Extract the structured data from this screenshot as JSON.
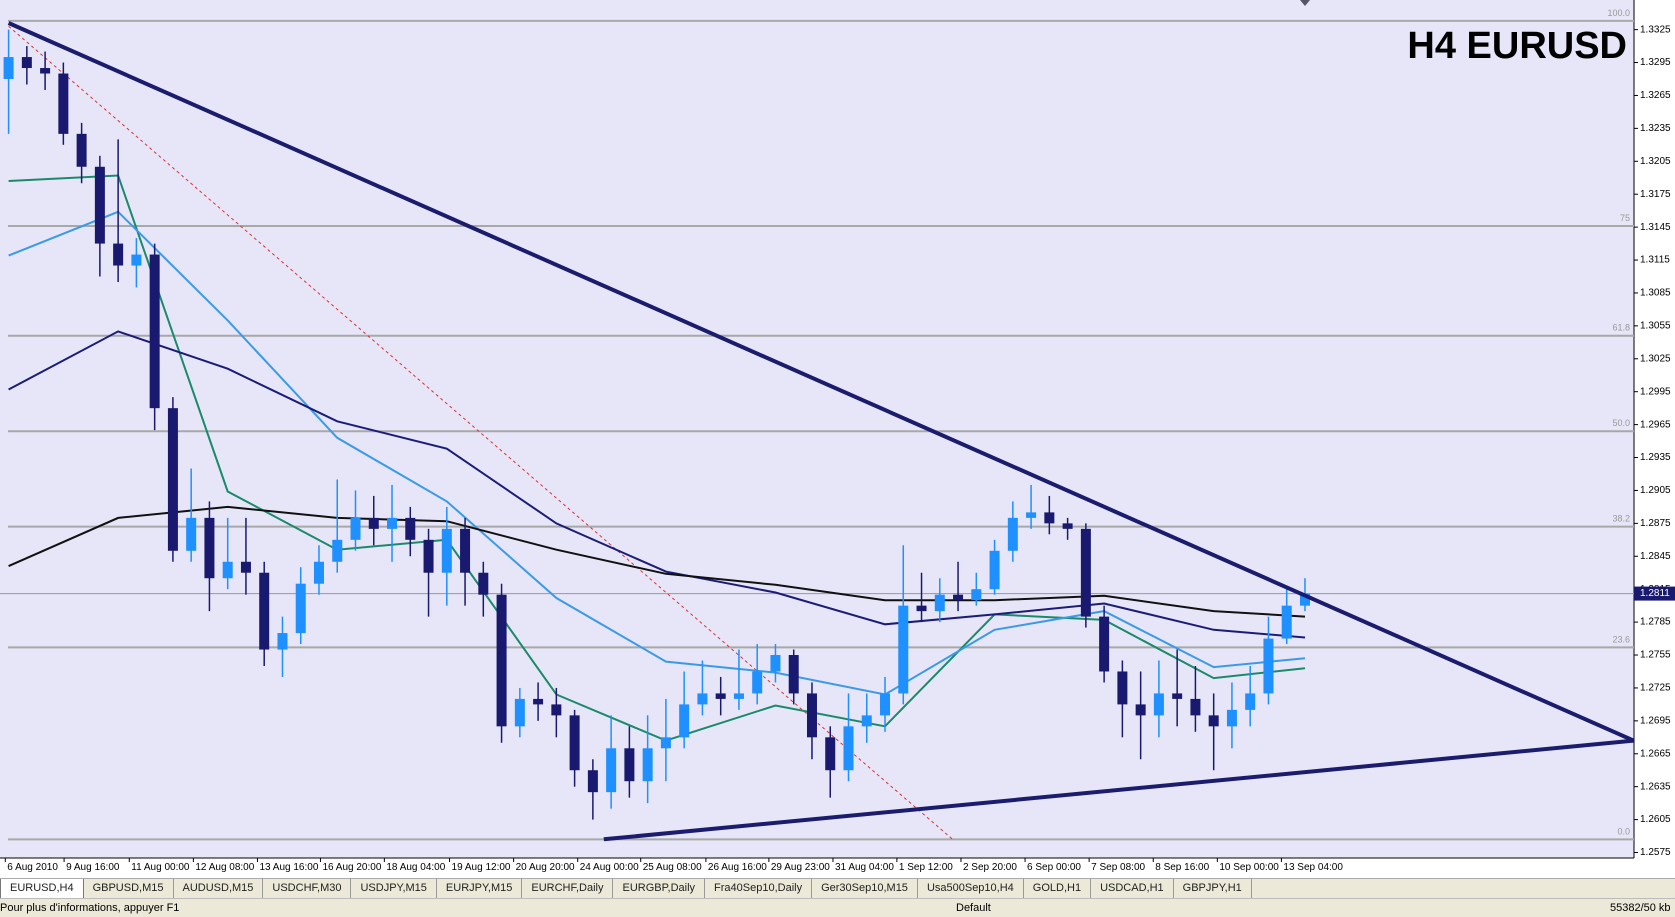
{
  "chart_data": {
    "type": "candlestick",
    "title": "H4 EURUSD",
    "up_color": "#1e90ff",
    "down_color": "#191970",
    "ylim": [
      1.257,
      1.3352
    ],
    "xlim": [
      -0.47,
      89.02
    ],
    "yticks": [
      1.2575,
      1.2605,
      1.2635,
      1.2665,
      1.2695,
      1.2725,
      1.2755,
      1.2785,
      1.2815,
      1.2845,
      1.2875,
      1.2905,
      1.2935,
      1.2965,
      1.2995,
      1.3025,
      1.3055,
      1.3085,
      1.3115,
      1.3145,
      1.3175,
      1.3205,
      1.3235,
      1.3265,
      1.3295,
      1.3325
    ],
    "xticks": [
      {
        "value": -0.18,
        "label": "6 Aug 2010"
      },
      {
        "value": 3.04,
        "label": "9 Aug 16:00"
      },
      {
        "value": 6.61,
        "label": "11 Aug 00:00"
      },
      {
        "value": 10.12,
        "label": "12 Aug 08:00"
      },
      {
        "value": 13.63,
        "label": "13 Aug 16:00"
      },
      {
        "value": 17.08,
        "label": "16 Aug 20:00"
      },
      {
        "value": 20.58,
        "label": "18 Aug 04:00"
      },
      {
        "value": 24.15,
        "label": "19 Aug 12:00"
      },
      {
        "value": 27.66,
        "label": "20 Aug 20:00"
      },
      {
        "value": 31.17,
        "label": "24 Aug 00:00"
      },
      {
        "value": 34.62,
        "label": "25 Aug 08:00"
      },
      {
        "value": 38.19,
        "label": "26 Aug 16:00"
      },
      {
        "value": 41.64,
        "label": "29 Aug 23:00"
      },
      {
        "value": 45.15,
        "label": "31 Aug 04:00"
      },
      {
        "value": 48.65,
        "label": "1 Sep 12:00"
      },
      {
        "value": 52.16,
        "label": "2 Sep 20:00"
      },
      {
        "value": 55.67,
        "label": "6 Sep 00:00"
      },
      {
        "value": 59.18,
        "label": "7 Sep 08:00"
      },
      {
        "value": 62.69,
        "label": "8 Sep 16:00"
      },
      {
        "value": 66.2,
        "label": "10 Sep 00:00"
      },
      {
        "value": 69.71,
        "label": "13 Sep 04:00"
      }
    ],
    "candles": {
      "open": [
        1.328,
        1.33,
        1.329,
        1.3285,
        1.323,
        1.32,
        1.313,
        1.311,
        1.312,
        1.298,
        1.285,
        1.288,
        1.2825,
        1.284,
        1.283,
        1.276,
        1.2775,
        1.282,
        1.284,
        1.286,
        1.288,
        1.287,
        1.288,
        1.286,
        1.283,
        1.287,
        1.283,
        1.281,
        1.269,
        1.2715,
        1.271,
        1.27,
        1.265,
        1.263,
        1.267,
        1.264,
        1.267,
        1.268,
        1.271,
        1.272,
        1.2715,
        1.272,
        1.274,
        1.2755,
        1.272,
        1.268,
        1.265,
        1.269,
        1.27,
        1.272,
        1.28,
        1.2795,
        1.281,
        1.2805,
        1.2815,
        1.285,
        1.288,
        1.2885,
        1.2875,
        1.287,
        1.279,
        1.274,
        1.271,
        1.27,
        1.272,
        1.2715,
        1.27,
        1.269,
        1.2705,
        1.272,
        1.277,
        1.28
      ],
      "high": [
        1.3325,
        1.331,
        1.3305,
        1.3295,
        1.324,
        1.321,
        1.3225,
        1.3135,
        1.313,
        1.299,
        1.2925,
        1.2895,
        1.288,
        1.288,
        1.284,
        1.279,
        1.2835,
        1.2855,
        1.2915,
        1.2905,
        1.29,
        1.291,
        1.289,
        1.287,
        1.289,
        1.288,
        1.284,
        1.282,
        1.2725,
        1.273,
        1.2725,
        1.2705,
        1.266,
        1.27,
        1.269,
        1.27,
        1.2715,
        1.274,
        1.275,
        1.2735,
        1.276,
        1.2765,
        1.2765,
        1.276,
        1.273,
        1.269,
        1.272,
        1.272,
        1.2735,
        1.2855,
        1.283,
        1.2825,
        1.284,
        1.283,
        1.286,
        1.2895,
        1.291,
        1.29,
        1.288,
        1.2875,
        1.28,
        1.275,
        1.274,
        1.275,
        1.276,
        1.2745,
        1.272,
        1.273,
        1.2745,
        1.279,
        1.2815,
        1.2825
      ],
      "low": [
        1.323,
        1.3275,
        1.327,
        1.322,
        1.3185,
        1.31,
        1.3095,
        1.309,
        1.296,
        1.284,
        1.284,
        1.2795,
        1.2815,
        1.281,
        1.2745,
        1.2735,
        1.2765,
        1.281,
        1.283,
        1.285,
        1.2855,
        1.284,
        1.2845,
        1.279,
        1.28,
        1.28,
        1.279,
        1.2675,
        1.268,
        1.2695,
        1.268,
        1.2635,
        1.2605,
        1.2615,
        1.2625,
        1.262,
        1.264,
        1.267,
        1.27,
        1.27,
        1.2705,
        1.271,
        1.273,
        1.271,
        1.266,
        1.2625,
        1.264,
        1.2675,
        1.2685,
        1.271,
        1.2785,
        1.2785,
        1.2795,
        1.28,
        1.281,
        1.284,
        1.287,
        1.2865,
        1.286,
        1.278,
        1.273,
        1.268,
        1.266,
        1.268,
        1.269,
        1.2685,
        1.265,
        1.267,
        1.269,
        1.271,
        1.2765,
        1.2795
      ],
      "close": [
        1.33,
        1.329,
        1.3285,
        1.323,
        1.32,
        1.313,
        1.311,
        1.312,
        1.298,
        1.285,
        1.288,
        1.2825,
        1.284,
        1.283,
        1.276,
        1.2775,
        1.282,
        1.284,
        1.286,
        1.288,
        1.287,
        1.288,
        1.286,
        1.283,
        1.287,
        1.283,
        1.281,
        1.269,
        1.2715,
        1.271,
        1.27,
        1.265,
        1.263,
        1.267,
        1.264,
        1.267,
        1.268,
        1.271,
        1.272,
        1.2715,
        1.272,
        1.274,
        1.2755,
        1.272,
        1.268,
        1.265,
        1.269,
        1.27,
        1.272,
        1.28,
        1.2795,
        1.281,
        1.2805,
        1.2815,
        1.285,
        1.288,
        1.2885,
        1.2875,
        1.287,
        1.279,
        1.274,
        1.271,
        1.27,
        1.272,
        1.2715,
        1.27,
        1.269,
        1.2705,
        1.272,
        1.277,
        1.28,
        1.2811
      ]
    },
    "moving_averages": [
      {
        "color": "#1a8a6a",
        "x": [
          0,
          6,
          12,
          18,
          24,
          30,
          36,
          42,
          48,
          54,
          60,
          66,
          71
        ],
        "values": [
          1.3187,
          1.3192,
          1.2904,
          1.2851,
          1.286,
          1.2719,
          1.2677,
          1.2709,
          1.269,
          1.2792,
          1.2787,
          1.2734,
          1.2743
        ]
      },
      {
        "color": "#3a9ae8",
        "x": [
          0,
          6,
          12,
          18,
          24,
          30,
          36,
          42,
          48,
          54,
          60,
          66,
          71
        ],
        "values": [
          1.3119,
          1.3159,
          1.306,
          1.2953,
          1.2895,
          1.2807,
          1.2749,
          1.2739,
          1.2719,
          1.2778,
          1.2795,
          1.2744,
          1.2752
        ]
      },
      {
        "color": "#1c1c78",
        "x": [
          0,
          6,
          12,
          18,
          24,
          30,
          36,
          42,
          48,
          54,
          60,
          66,
          71
        ],
        "values": [
          1.2997,
          1.305,
          1.3016,
          1.2968,
          1.2943,
          1.2875,
          1.2831,
          1.2812,
          1.2783,
          1.2792,
          1.2802,
          1.2778,
          1.2771
        ]
      },
      {
        "color": "#111111",
        "x": [
          0,
          6,
          12,
          18,
          24,
          30,
          36,
          42,
          48,
          54,
          60,
          66,
          71
        ],
        "values": [
          1.2836,
          1.288,
          1.289,
          1.288,
          1.2877,
          1.2851,
          1.2829,
          1.2819,
          1.2805,
          1.2805,
          1.2809,
          1.2795,
          1.279
        ]
      }
    ],
    "trendlines": [
      {
        "color": "#1c1c6e",
        "x": [
          0,
          89
        ],
        "values": [
          1.3331,
          1.2677
        ]
      },
      {
        "color": "#1c1c6e",
        "x": [
          32.6,
          89
        ],
        "values": [
          1.2587,
          1.2677
        ]
      }
    ],
    "fib_diagonal": {
      "color": "#e03030",
      "x": [
        0,
        51.7
      ],
      "values": [
        1.3328,
        1.2587
      ]
    },
    "fib_levels": [
      {
        "label": "100.0",
        "price": 1.3333
      },
      {
        "label": "75",
        "price": 1.3146
      },
      {
        "label": "61.8",
        "price": 1.3046
      },
      {
        "label": "50.0",
        "price": 1.2959
      },
      {
        "label": "38.2",
        "price": 1.2872
      },
      {
        "label": "23.6",
        "price": 1.2762
      },
      {
        "label": "0.0",
        "price": 1.2587
      }
    ],
    "last_price": 1.2811
  },
  "tabs": [
    "EURUSD,H4",
    "GBPUSD,M15",
    "AUDUSD,M15",
    "USDCHF,M30",
    "USDJPY,M15",
    "EURJPY,M15",
    "EURCHF,Daily",
    "EURGBP,Daily",
    "Fra40Sep10,Daily",
    "Ger30Sep10,M15",
    "Usa500Sep10,H4",
    "GOLD,H1",
    "USDCAD,H1",
    "GBPJPY,H1"
  ],
  "status_bar": {
    "help": "Pour plus d'informations, appuyer F1",
    "profile": "Default",
    "traffic": "55382/50 kb"
  }
}
